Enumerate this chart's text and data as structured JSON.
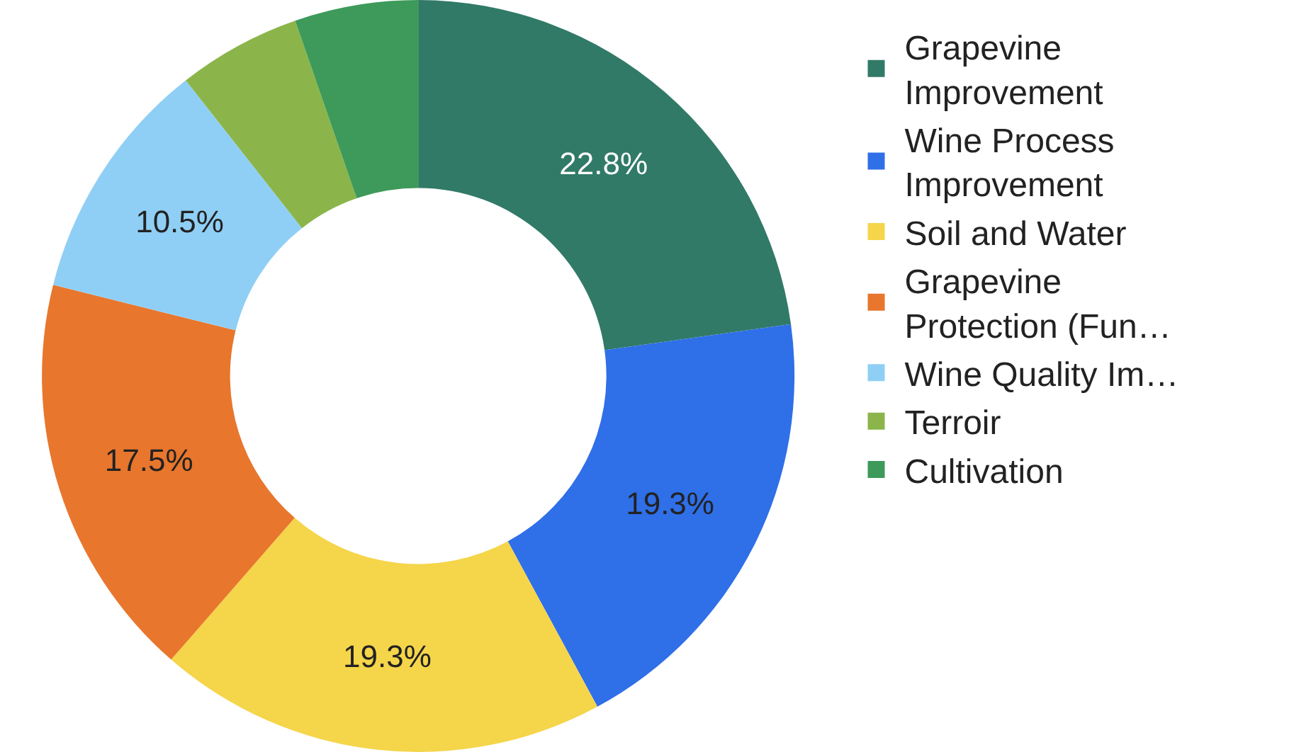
{
  "chart_data": {
    "type": "donut",
    "categories": [
      "Grapevine Improvement",
      "Wine Process Improvement",
      "Soil and Water",
      "Grapevine Protection (Fun…",
      "Wine Quality Im…",
      "Terroir",
      "Cultivation"
    ],
    "values": [
      22.8,
      19.3,
      19.3,
      17.5,
      10.5,
      5.3,
      5.3
    ],
    "value_labels": [
      "22.8%",
      "19.3%",
      "19.3%",
      "17.5%",
      "10.5%",
      null,
      null
    ],
    "colors": [
      "#317a67",
      "#2f6fe8",
      "#f5d54a",
      "#e8762d",
      "#90cff5",
      "#8bb54a",
      "#3d9a5a"
    ],
    "legend": "right"
  }
}
